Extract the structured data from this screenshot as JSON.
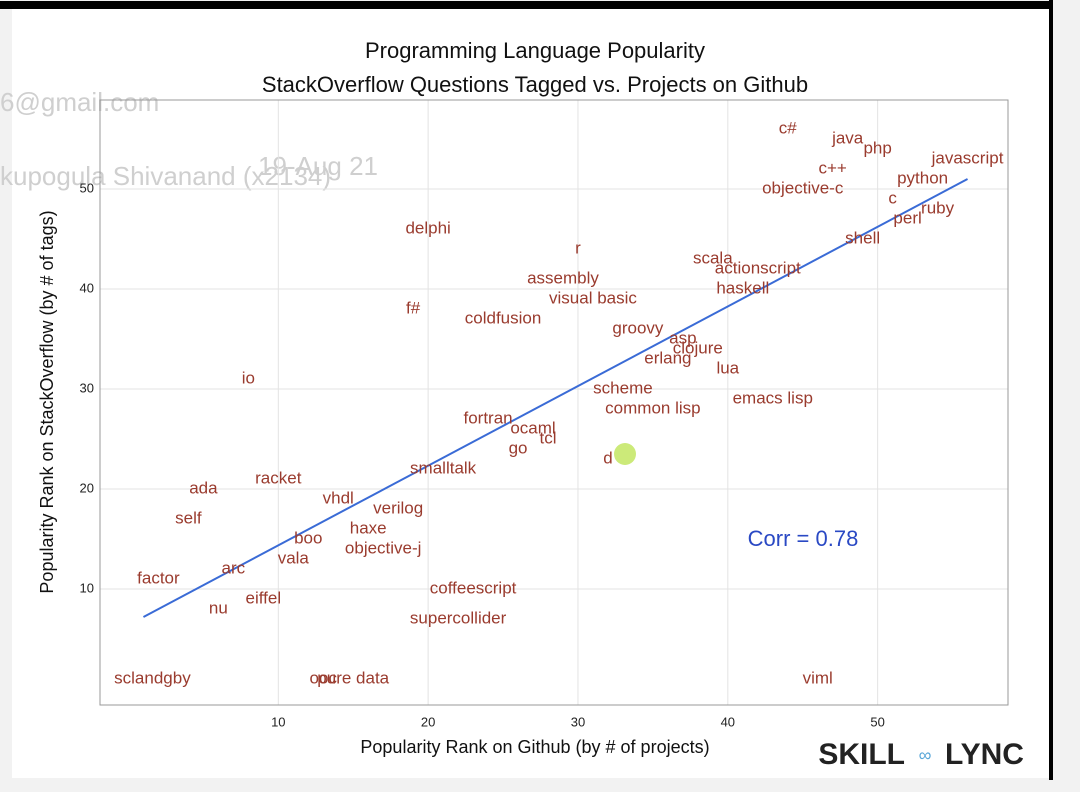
{
  "chart_data": {
    "type": "scatter",
    "title": "Programming Language Popularity",
    "subtitle": "StackOverflow Questions Tagged vs. Projects on Github",
    "x_label": "Popularity Rank on Github (by # of projects)",
    "y_label": "Popularity Rank on StackOverflow (by # of tags)",
    "annotation": "Corr =  0.78",
    "color": "#9a3b2e",
    "labels": [
      "c#",
      "java",
      "php",
      "javascript",
      "c++",
      "python",
      "objective-c",
      "c",
      "ruby",
      "perl",
      "shell",
      "delphi",
      "r",
      "scala",
      "actionscript",
      "assembly",
      "haskell",
      "visual basic",
      "f#",
      "coldfusion",
      "groovy",
      "asp",
      "clojure",
      "erlang",
      "lua",
      "io",
      "scheme",
      "emacs lisp",
      "common lisp",
      "fortran",
      "ocaml",
      "tcl",
      "go",
      "d",
      "smalltalk",
      "racket",
      "ada",
      "vhdl",
      "verilog",
      "self",
      "haxe",
      "boo",
      "objective-j",
      "vala",
      "arc",
      "factor",
      "coffeescript",
      "eiffel",
      "nu",
      "supercollider",
      "sclandgby",
      "ooc",
      "pure data",
      "viml"
    ],
    "x": [
      44,
      48,
      50,
      56,
      47,
      53,
      45,
      51,
      54,
      52,
      49,
      20,
      30,
      39,
      42,
      29,
      41,
      31,
      19,
      25,
      34,
      37,
      38,
      36,
      40,
      8,
      33,
      43,
      35,
      24,
      27,
      28,
      26,
      32,
      21,
      10,
      5,
      14,
      18,
      4,
      16,
      12,
      17,
      11,
      7,
      2,
      23,
      9,
      6,
      22,
      1.6,
      13,
      15,
      46
    ],
    "y": [
      56,
      55,
      54,
      53,
      52,
      51,
      50,
      49,
      48,
      47,
      45,
      46,
      44,
      43,
      42,
      41,
      40,
      39,
      38,
      37,
      36,
      35,
      34,
      33,
      32,
      31,
      30,
      29,
      28,
      27,
      26,
      25,
      24,
      23,
      22,
      21,
      20,
      19,
      18,
      17,
      16,
      15,
      14,
      13,
      12,
      11,
      10,
      9,
      8,
      7,
      1,
      1,
      1,
      1
    ],
    "trend_line": {
      "x": [
        1,
        56
      ],
      "y": [
        7.2,
        51
      ],
      "color": "#3a6bd6"
    },
    "xlim": [
      -1.9,
      58.7
    ],
    "ylim": [
      -1.6,
      58.9
    ],
    "xticks": [
      10,
      20,
      30,
      40,
      50
    ],
    "yticks": [
      10,
      20,
      30,
      40,
      50
    ],
    "grid": true
  },
  "watermark": [
    "6@gmail.com",
    "kupogula Shivanand (x2134)",
    "19-Aug 21"
  ],
  "logo": [
    "SKILL",
    "LYNC"
  ]
}
